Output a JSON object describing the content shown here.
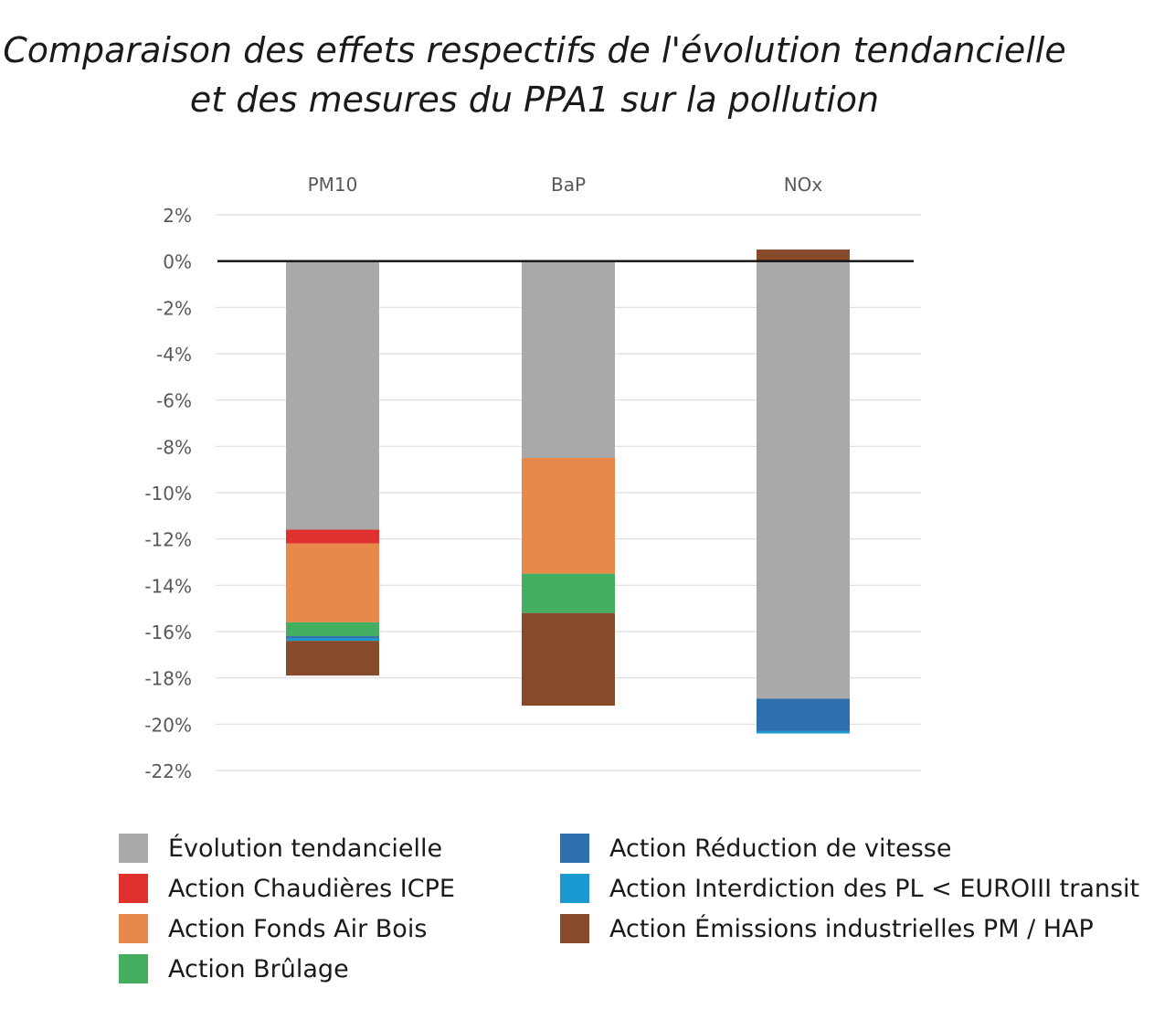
{
  "title_lines": [
    "Comparaison des effets respectifs de l'évolution tendancielle",
    "et des mesures du PPA1 sur la pollution"
  ],
  "chart_data": {
    "type": "bar",
    "stacked": true,
    "categories": [
      "PM10",
      "BaP",
      "NOx"
    ],
    "category_axis_position": "top",
    "ylim": [
      -22,
      2
    ],
    "yticks": [
      2,
      0,
      -2,
      -4,
      -6,
      -8,
      -10,
      -12,
      -14,
      -16,
      -18,
      -20,
      -22
    ],
    "ytick_labels": [
      "2%",
      "0%",
      "-2%",
      "-4%",
      "-6%",
      "-8%",
      "-10%",
      "-12%",
      "-14%",
      "-16%",
      "-18%",
      "-20%",
      "-22%"
    ],
    "grid": true,
    "legend_position": "bottom",
    "series": [
      {
        "name": "Évolution tendancielle",
        "color": "#a8a9a8",
        "values": [
          -11.6,
          -8.5,
          -18.9
        ]
      },
      {
        "name": "Action Chaudières ICPE",
        "color": "#e03131",
        "values": [
          -0.6,
          0,
          0
        ]
      },
      {
        "name": "Action Fonds Air Bois",
        "color": "#e8884a",
        "values": [
          -3.4,
          -5.0,
          0
        ]
      },
      {
        "name": "Action Brûlage",
        "color": "#43ad60",
        "values": [
          -0.6,
          -1.7,
          0
        ]
      },
      {
        "name": "Action Réduction de vitesse",
        "color": "#2f6fae",
        "values": [
          -0.1,
          0,
          -1.4
        ]
      },
      {
        "name": "Action Interdiction des PL < EUROIII transit",
        "color": "#1b9ad1",
        "values": [
          -0.1,
          0,
          -0.1
        ]
      },
      {
        "name": "Action Émissions industrielles PM / HAP",
        "color": "#874a2b",
        "values": [
          -1.5,
          -4.0,
          0.5
        ]
      }
    ]
  }
}
